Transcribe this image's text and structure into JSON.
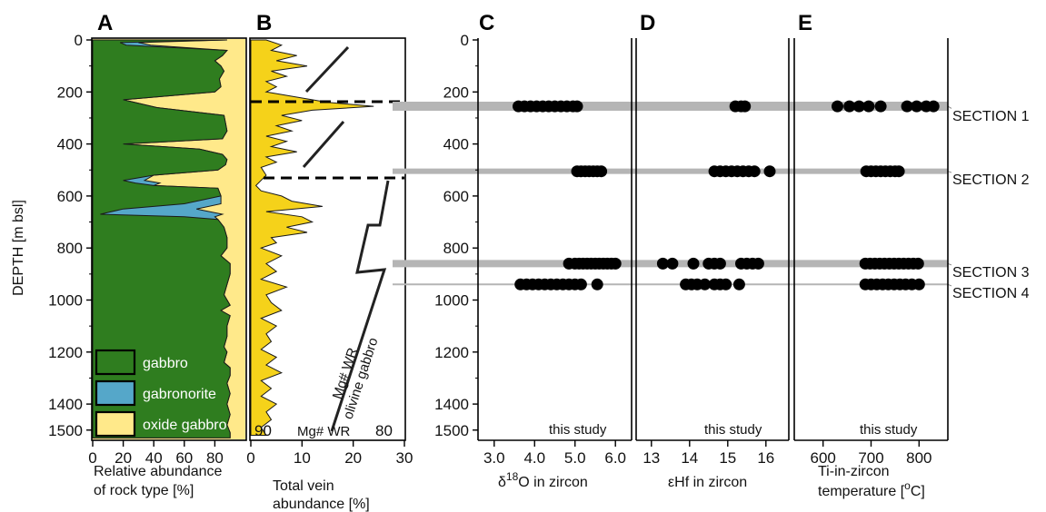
{
  "colors": {
    "gabbro": "#2f7d1f",
    "gabbronorite": "#55a7c9",
    "oxide_gabbro": "#ffe98a",
    "vein": "#f5d21a",
    "section_band": "#b5b5b5",
    "dot": "#000000"
  },
  "depth_axis": {
    "label": "DEPTH [m bsl]",
    "ticks": [
      "0",
      "200",
      "400",
      "600",
      "800",
      "1000",
      "1200",
      "1400",
      "1500"
    ]
  },
  "panels": [
    {
      "letter": "A",
      "xlabel_lines": [
        "Relative abundance",
        "of rock type [%]"
      ],
      "xticks": [
        "0",
        "20",
        "40",
        "60",
        "80"
      ],
      "legend": [
        "gabbro",
        "gabronorite",
        "oxide gabbro"
      ]
    },
    {
      "letter": "B",
      "xlabel_lines": [
        "Total vein",
        "abundance [%]"
      ],
      "xticks": [
        "0",
        "10",
        "20",
        "30"
      ],
      "inner_labels": {
        "mg_left": "90",
        "mg_mid": "Mg# WR",
        "mg_right": "80",
        "trend_line1": "Mg# WR",
        "trend_line2": "olivine gabbro"
      }
    },
    {
      "letter": "C",
      "xlabel_prefix": "δ",
      "xlabel_sup": "18",
      "xlabel_suffix": "O in zircon",
      "xticks": [
        "3.0",
        "4.0",
        "5.0",
        "6.0"
      ],
      "note": "this study"
    },
    {
      "letter": "D",
      "xlabel": "εHf in zircon",
      "xticks": [
        "13",
        "14",
        "15",
        "16"
      ],
      "note": "this study"
    },
    {
      "letter": "E",
      "xlabel_line1": "Ti-in-zircon",
      "xlabel_line2_prefix": "temperature [",
      "xlabel_line2_sup": "o",
      "xlabel_line2_suffix": "C]",
      "xticks": [
        "600",
        "700",
        "800"
      ],
      "note": "this study"
    }
  ],
  "sections": [
    {
      "label": "SECTION 1",
      "depth": 255
    },
    {
      "label": "SECTION 2",
      "depth": 505
    },
    {
      "label": "SECTION 3",
      "depth": 860
    },
    {
      "label": "SECTION 4",
      "depth": 940
    }
  ],
  "chart_data": [
    {
      "type": "area",
      "panel": "A",
      "ylim": [
        0,
        1550
      ],
      "xlim": [
        0,
        100
      ],
      "series_names": [
        "gabbro",
        "gabronorite",
        "oxide gabbro"
      ],
      "depth_m": [
        0,
        10,
        20,
        40,
        60,
        80,
        100,
        120,
        150,
        180,
        200,
        230,
        260,
        290,
        320,
        350,
        380,
        400,
        420,
        440,
        460,
        480,
        500,
        520,
        540,
        550,
        560,
        570,
        600,
        630,
        650,
        670,
        680,
        690,
        720,
        760,
        800,
        830,
        860,
        900,
        940,
        980,
        1020,
        1040,
        1060,
        1100,
        1140,
        1180,
        1200,
        1240,
        1260,
        1290,
        1320,
        1360,
        1400,
        1440,
        1480,
        1510,
        1530
      ],
      "gabbro_pct": [
        88,
        18,
        22,
        88,
        85,
        80,
        84,
        86,
        83,
        84,
        80,
        20,
        42,
        86,
        87,
        88,
        85,
        20,
        70,
        85,
        88,
        87,
        82,
        40,
        20,
        28,
        40,
        82,
        84,
        60,
        20,
        5,
        60,
        82,
        86,
        88,
        88,
        84,
        90,
        90,
        88,
        86,
        90,
        84,
        90,
        88,
        88,
        86,
        88,
        86,
        90,
        90,
        88,
        90,
        88,
        90,
        88,
        90,
        90
      ],
      "gabbronorite_pct": [
        0,
        12,
        16,
        0,
        0,
        0,
        0,
        0,
        0,
        0,
        0,
        0,
        0,
        0,
        0,
        0,
        0,
        0,
        0,
        0,
        0,
        0,
        0,
        0,
        14,
        16,
        0,
        0,
        0,
        24,
        48,
        80,
        20,
        0,
        0,
        0,
        0,
        0,
        0,
        0,
        0,
        0,
        0,
        0,
        0,
        0,
        0,
        0,
        0,
        0,
        0,
        0,
        0,
        0,
        0,
        0,
        0,
        0,
        0
      ],
      "oxide_gabbro_pct": [
        0,
        70,
        62,
        12,
        15,
        20,
        16,
        14,
        17,
        16,
        20,
        80,
        58,
        14,
        13,
        12,
        15,
        80,
        30,
        15,
        12,
        13,
        18,
        60,
        66,
        56,
        60,
        18,
        16,
        16,
        32,
        15,
        20,
        18,
        14,
        12,
        12,
        16,
        10,
        10,
        12,
        14,
        10,
        16,
        10,
        12,
        12,
        14,
        12,
        14,
        10,
        10,
        12,
        10,
        12,
        10,
        12,
        10,
        10
      ]
    },
    {
      "type": "area",
      "panel": "B",
      "ylim": [
        0,
        1550
      ],
      "xlim": [
        0,
        30
      ],
      "series_names": [
        "Total vein abundance"
      ],
      "depth_m": [
        0,
        20,
        40,
        60,
        80,
        100,
        120,
        140,
        160,
        180,
        200,
        220,
        240,
        255,
        270,
        290,
        310,
        330,
        350,
        370,
        390,
        410,
        430,
        450,
        470,
        490,
        520,
        540,
        560,
        580,
        600,
        620,
        640,
        660,
        680,
        700,
        720,
        740,
        760,
        780,
        800,
        830,
        860,
        890,
        920,
        950,
        980,
        1010,
        1040,
        1070,
        1100,
        1130,
        1160,
        1190,
        1220,
        1250,
        1280,
        1310,
        1340,
        1370,
        1400,
        1430,
        1460,
        1490,
        1520
      ],
      "vein_pct": [
        3,
        6,
        4,
        9,
        5,
        11,
        4,
        7,
        3,
        5,
        3,
        9,
        15,
        24,
        12,
        6,
        10,
        5,
        8,
        3,
        7,
        4,
        9,
        3,
        5,
        2,
        3,
        2,
        1,
        2,
        6,
        8,
        14,
        3,
        10,
        12,
        7,
        11,
        4,
        5,
        2,
        6,
        3,
        5,
        2,
        7,
        3,
        4,
        6,
        2,
        5,
        3,
        4,
        2,
        5,
        3,
        6,
        2,
        4,
        2,
        5,
        3,
        4,
        2,
        3
      ]
    },
    {
      "type": "scatter",
      "panel": "C",
      "xlabel": "δ18O in zircon",
      "xlim": [
        2.6,
        6.4
      ],
      "ylim": [
        0,
        1550
      ],
      "points": [
        {
          "depth": 255,
          "values": [
            3.6,
            3.75,
            3.9,
            4.05,
            4.2,
            4.35,
            4.5,
            4.65,
            4.8,
            4.95,
            5.05
          ]
        },
        {
          "depth": 505,
          "values": [
            5.05,
            5.15,
            5.25,
            5.35,
            5.45,
            5.55,
            5.65
          ]
        },
        {
          "depth": 860,
          "values": [
            4.85,
            5.0,
            5.1,
            5.2,
            5.3,
            5.4,
            5.5,
            5.6,
            5.7,
            5.8,
            5.9,
            6.0
          ]
        },
        {
          "depth": 940,
          "values": [
            3.65,
            3.8,
            3.95,
            4.1,
            4.25,
            4.4,
            4.55,
            4.7,
            4.85,
            5.0,
            5.15,
            5.55
          ]
        }
      ]
    },
    {
      "type": "scatter",
      "panel": "D",
      "xlabel": "εHf in zircon",
      "xlim": [
        12.6,
        16.6
      ],
      "ylim": [
        0,
        1550
      ],
      "points": [
        {
          "depth": 255,
          "values": [
            15.2,
            15.35,
            15.45
          ]
        },
        {
          "depth": 505,
          "values": [
            14.65,
            14.8,
            14.95,
            15.1,
            15.25,
            15.4,
            15.55,
            15.7,
            16.1
          ]
        },
        {
          "depth": 860,
          "values": [
            13.3,
            13.55,
            14.1,
            14.5,
            14.65,
            14.8,
            15.35,
            15.5,
            15.65,
            15.8
          ]
        },
        {
          "depth": 940,
          "values": [
            13.9,
            14.05,
            14.2,
            14.4,
            14.65,
            14.8,
            14.95,
            15.3
          ]
        }
      ]
    },
    {
      "type": "scatter",
      "panel": "E",
      "xlabel": "Ti-in-zircon temperature [oC]",
      "xlim": [
        540,
        860
      ],
      "ylim": [
        0,
        1550
      ],
      "points": [
        {
          "depth": 255,
          "values": [
            630,
            655,
            675,
            695,
            720,
            775,
            795,
            815,
            830
          ]
        },
        {
          "depth": 505,
          "values": [
            690,
            700,
            710,
            720,
            730,
            740,
            750,
            758
          ]
        },
        {
          "depth": 860,
          "values": [
            688,
            698,
            708,
            718,
            728,
            738,
            748,
            758,
            768,
            778,
            788,
            798
          ]
        },
        {
          "depth": 940,
          "values": [
            688,
            700,
            712,
            724,
            736,
            748,
            760,
            772,
            785,
            800
          ]
        }
      ]
    }
  ]
}
